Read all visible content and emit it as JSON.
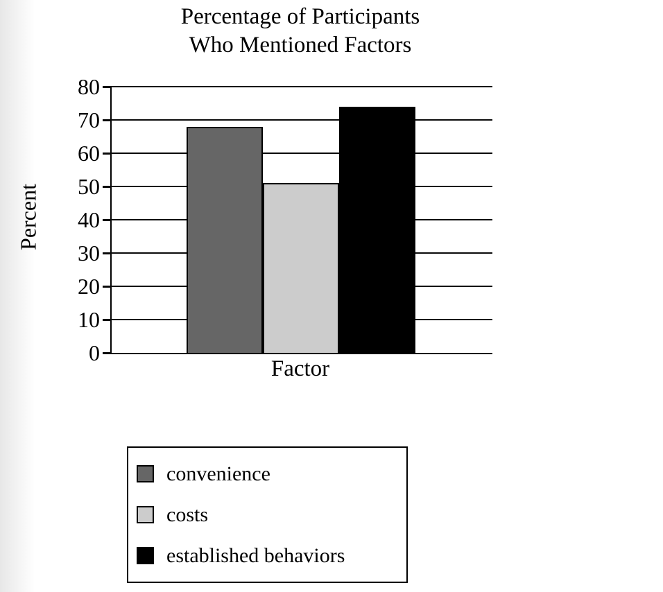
{
  "page": {
    "background_color": "#ffffff",
    "edge_strip_color": "#e7e7e7"
  },
  "chart_data": {
    "type": "bar",
    "title_lines": [
      "Percentage of Participants",
      "Who Mentioned Factors"
    ],
    "xlabel": "Factor",
    "ylabel": "Percent",
    "ylim": [
      0,
      80
    ],
    "yticks": [
      80,
      70,
      60,
      50,
      40,
      30,
      20,
      10,
      0
    ],
    "grid": "horizontal gridlines at every 10 units",
    "legend_position": "below chart, boxed",
    "categories": [
      "convenience",
      "costs",
      "established behaviors"
    ],
    "values": [
      68,
      51,
      74
    ],
    "bar_colors": [
      "#666666",
      "#cccccc",
      "#000000"
    ],
    "bar_border_color": "#000000"
  },
  "legend": {
    "entries": [
      {
        "label": "convenience",
        "color": "#666666"
      },
      {
        "label": "costs",
        "color": "#cccccc"
      },
      {
        "label": "established behaviors",
        "color": "#000000"
      }
    ]
  }
}
